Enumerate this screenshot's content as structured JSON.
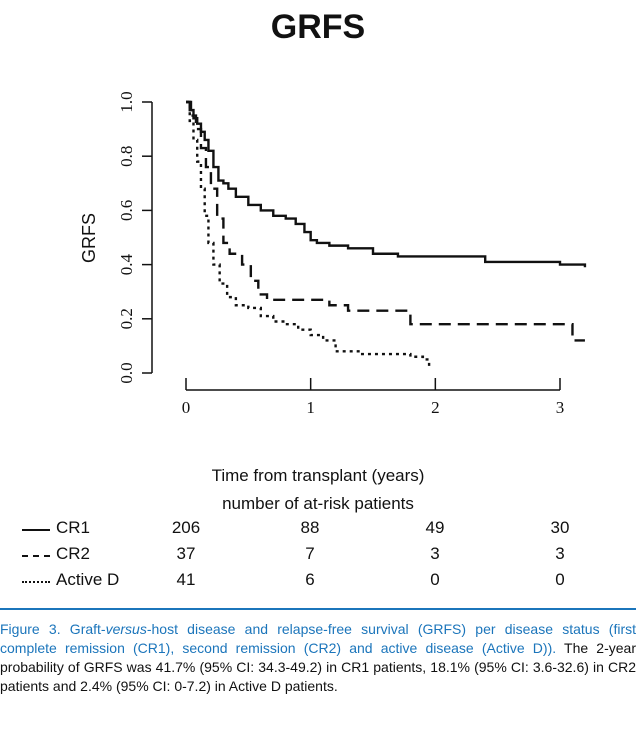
{
  "chart_data": {
    "type": "line",
    "title": "GRFS",
    "ylabel": "GRFS",
    "xlabel": "Time from transplant (years)",
    "xlim": [
      0,
      3.2
    ],
    "ylim": [
      0,
      1
    ],
    "xticks": [
      0,
      1,
      2,
      3
    ],
    "yticks": [
      0.0,
      0.2,
      0.4,
      0.6,
      0.8,
      1.0
    ],
    "ytick_labels": [
      "0.0",
      "0.2",
      "0.4",
      "0.6",
      "0.8",
      "1.0"
    ],
    "series": [
      {
        "name": "CR1",
        "style": "solid",
        "x": [
          0,
          0.03,
          0.06,
          0.09,
          0.12,
          0.15,
          0.18,
          0.22,
          0.26,
          0.3,
          0.34,
          0.4,
          0.5,
          0.6,
          0.7,
          0.8,
          0.88,
          0.95,
          1.0,
          1.05,
          1.15,
          1.3,
          1.5,
          1.7,
          2.0,
          2.4,
          2.8,
          3.0,
          3.2
        ],
        "y": [
          1.0,
          0.97,
          0.94,
          0.92,
          0.89,
          0.86,
          0.82,
          0.76,
          0.71,
          0.7,
          0.68,
          0.65,
          0.62,
          0.6,
          0.58,
          0.57,
          0.55,
          0.52,
          0.49,
          0.48,
          0.47,
          0.46,
          0.44,
          0.43,
          0.43,
          0.41,
          0.41,
          0.4,
          0.39
        ]
      },
      {
        "name": "CR2",
        "style": "dashed",
        "x": [
          0,
          0.04,
          0.08,
          0.12,
          0.16,
          0.2,
          0.25,
          0.3,
          0.35,
          0.45,
          0.52,
          0.58,
          0.65,
          0.75,
          0.9,
          1.0,
          1.15,
          1.3,
          1.6,
          1.8,
          2.2,
          2.6,
          3.0,
          3.1,
          3.2
        ],
        "y": [
          1.0,
          0.95,
          0.9,
          0.83,
          0.76,
          0.68,
          0.57,
          0.48,
          0.44,
          0.4,
          0.34,
          0.29,
          0.27,
          0.27,
          0.27,
          0.27,
          0.25,
          0.23,
          0.23,
          0.18,
          0.18,
          0.18,
          0.18,
          0.12,
          0.12
        ]
      },
      {
        "name": "Active D",
        "style": "dotted",
        "x": [
          0,
          0.03,
          0.06,
          0.09,
          0.12,
          0.15,
          0.18,
          0.22,
          0.27,
          0.33,
          0.4,
          0.5,
          0.6,
          0.7,
          0.8,
          0.9,
          1.0,
          1.1,
          1.2,
          1.4,
          1.6,
          1.8,
          1.9,
          1.95
        ],
        "y": [
          1.0,
          0.93,
          0.86,
          0.78,
          0.68,
          0.58,
          0.48,
          0.4,
          0.33,
          0.28,
          0.25,
          0.24,
          0.21,
          0.19,
          0.18,
          0.16,
          0.14,
          0.12,
          0.08,
          0.07,
          0.07,
          0.06,
          0.05,
          0.02
        ]
      }
    ]
  },
  "risk_table": {
    "heading": "number of at-risk patients",
    "rows": [
      {
        "label": "CR1",
        "style": "solid",
        "values": [
          "206",
          "88",
          "49",
          "30"
        ]
      },
      {
        "label": "CR2",
        "style": "dashed",
        "values": [
          "37",
          "7",
          "3",
          "3"
        ]
      },
      {
        "label": "Active D",
        "style": "dotted",
        "values": [
          "41",
          "6",
          "0",
          "0"
        ]
      }
    ]
  },
  "caption": {
    "lead_parts": [
      "Figure 3. Graft-",
      "versus",
      "-host disease and relapse-free survival (GRFS) per disease status (first complete remission (CR1), second remission (CR2) and active disease (Active D))."
    ],
    "body": " The 2-year probability of GRFS was 41.7% (95% CI: 34.3-49.2) in CR1 patients, 18.1% (95% CI: 3.6-32.6) in CR2 patients and 2.4% (95% CI: 0-7.2) in Active D patients."
  },
  "colors": {
    "accent": "#1b75bb",
    "ink": "#111111"
  }
}
